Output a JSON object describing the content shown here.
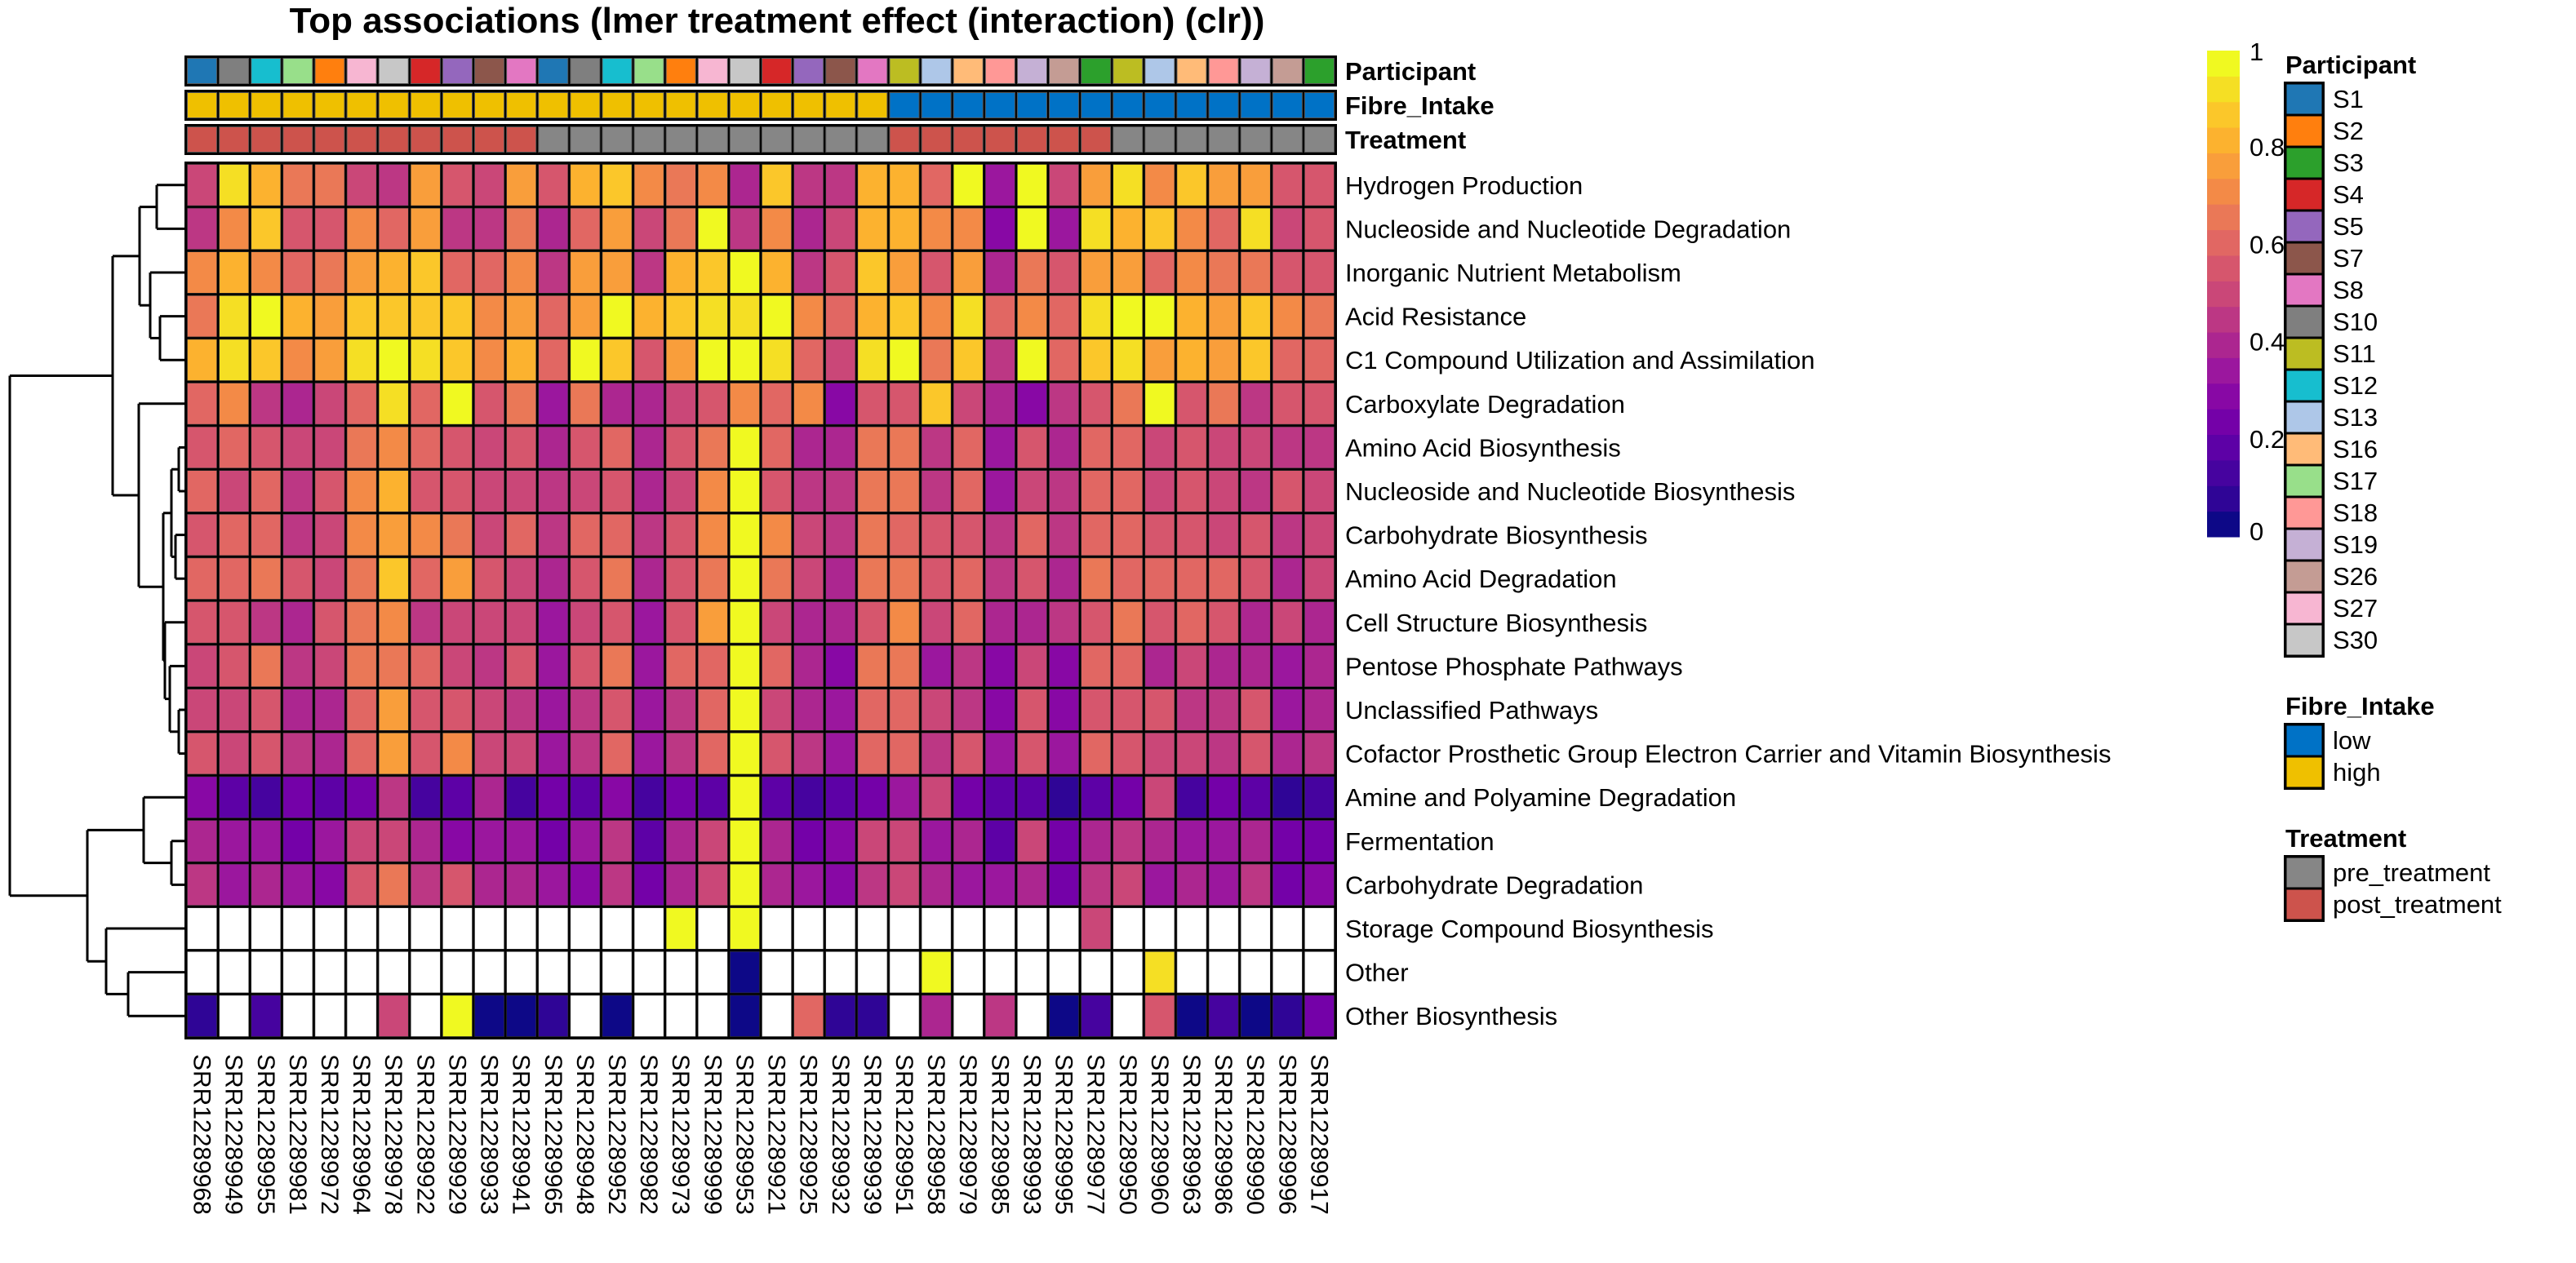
{
  "chart_data": {
    "type": "heatmap",
    "title": "Top associations (lmer treatment effect (interaction) (clr))",
    "xlabel": "",
    "ylabel": "",
    "color_scale": {
      "name": "plasma (binned)",
      "range": [
        0,
        1
      ],
      "ticks": [
        "0",
        "0.2",
        "0.4",
        "0.6",
        "0.8",
        "1"
      ],
      "tick_values": [
        0,
        0.2,
        0.4,
        0.6,
        0.8,
        1
      ],
      "bins": 19,
      "colors": [
        "#0D0887",
        "#2F0596",
        "#46039F",
        "#5D01A6",
        "#7401A8",
        "#8808A5",
        "#9B179E",
        "#AC2690",
        "#BC3784",
        "#CA4778",
        "#D6566D",
        "#E16763",
        "#EA7857",
        "#F38A47",
        "#F99E3B",
        "#FCB22F",
        "#FBC72A",
        "#F5DF24",
        "#F0F921"
      ],
      "missing_color": "#FFFFFF"
    },
    "columns": [
      "SRR12289968",
      "SRR12289949",
      "SRR12289955",
      "SRR12289981",
      "SRR12289972",
      "SRR12289964",
      "SRR12289978",
      "SRR12289922",
      "SRR12289929",
      "SRR12289933",
      "SRR12289941",
      "SRR12289965",
      "SRR12289948",
      "SRR12289952",
      "SRR12289982",
      "SRR12289973",
      "SRR12289999",
      "SRR12289953",
      "SRR12289921",
      "SRR12289925",
      "SRR12289932",
      "SRR12289939",
      "SRR12289951",
      "SRR12289958",
      "SRR12289979",
      "SRR12289985",
      "SRR12289993",
      "SRR12289995",
      "SRR12289977",
      "SRR12289950",
      "SRR12289960",
      "SRR12289963",
      "SRR12289986",
      "SRR12289990",
      "SRR12289996",
      "SRR12289917"
    ],
    "rows": [
      "Hydrogen Production",
      "Nucleoside and Nucleotide Degradation",
      "Inorganic Nutrient Metabolism",
      "Acid Resistance",
      "C1 Compound Utilization and Assimilation",
      "Carboxylate Degradation",
      "Amino Acid Biosynthesis",
      "Nucleoside and Nucleotide Biosynthesis",
      "Carbohydrate Biosynthesis",
      "Amino Acid Degradation",
      "Cell Structure Biosynthesis",
      "Pentose Phosphate Pathways",
      "Unclassified Pathways",
      "Cofactor Prosthetic Group Electron Carrier and Vitamin Biosynthesis",
      "Amine and Polyamine Degradation",
      "Fermentation",
      "Carbohydrate Degradation",
      "Storage Compound Biosynthesis",
      "Other",
      "Other Biosynthesis"
    ],
    "values": [
      [
        0.5,
        0.9,
        0.8,
        0.65,
        0.65,
        0.5,
        0.45,
        0.75,
        0.55,
        0.5,
        0.75,
        0.55,
        0.8,
        0.85,
        0.7,
        0.65,
        0.7,
        0.4,
        0.85,
        0.45,
        0.45,
        0.8,
        0.8,
        0.6,
        1.0,
        0.35,
        1.0,
        0.5,
        0.75,
        0.9,
        0.7,
        0.85,
        0.75,
        0.75,
        0.55,
        0.55
      ],
      [
        0.45,
        0.7,
        0.85,
        0.55,
        0.55,
        0.7,
        0.6,
        0.75,
        0.45,
        0.45,
        0.65,
        0.4,
        0.6,
        0.75,
        0.5,
        0.65,
        1.0,
        0.45,
        0.7,
        0.4,
        0.5,
        0.8,
        0.8,
        0.7,
        0.7,
        0.3,
        1.0,
        0.35,
        0.9,
        0.8,
        0.85,
        0.7,
        0.6,
        0.9,
        0.5,
        0.55
      ],
      [
        0.7,
        0.8,
        0.7,
        0.6,
        0.65,
        0.75,
        0.8,
        0.85,
        0.6,
        0.6,
        0.7,
        0.45,
        0.75,
        0.75,
        0.45,
        0.8,
        0.85,
        1.0,
        0.8,
        0.45,
        0.55,
        0.85,
        0.75,
        0.55,
        0.75,
        0.4,
        0.65,
        0.55,
        0.75,
        0.75,
        0.6,
        0.7,
        0.65,
        0.65,
        0.55,
        0.55
      ],
      [
        0.65,
        0.9,
        1.0,
        0.8,
        0.75,
        0.85,
        0.85,
        0.85,
        0.85,
        0.7,
        0.75,
        0.6,
        0.75,
        1.0,
        0.8,
        0.85,
        0.9,
        0.9,
        1.0,
        0.7,
        0.6,
        0.8,
        0.85,
        0.7,
        0.9,
        0.6,
        0.7,
        0.6,
        0.9,
        1.0,
        1.0,
        0.8,
        0.75,
        0.85,
        0.7,
        0.65
      ],
      [
        0.8,
        0.9,
        0.85,
        0.7,
        0.75,
        0.9,
        1.0,
        0.9,
        0.85,
        0.7,
        0.8,
        0.6,
        1.0,
        0.85,
        0.55,
        0.75,
        1.0,
        1.0,
        0.9,
        0.6,
        0.5,
        0.9,
        1.0,
        0.65,
        0.85,
        0.45,
        1.0,
        0.6,
        0.85,
        0.9,
        0.75,
        0.8,
        0.75,
        0.85,
        0.6,
        0.6
      ],
      [
        0.6,
        0.7,
        0.45,
        0.4,
        0.5,
        0.6,
        0.9,
        0.6,
        1.0,
        0.55,
        0.65,
        0.35,
        0.65,
        0.4,
        0.4,
        0.5,
        0.55,
        0.7,
        0.6,
        0.7,
        0.3,
        0.55,
        0.55,
        0.85,
        0.5,
        0.4,
        0.3,
        0.45,
        0.55,
        0.65,
        1.0,
        0.55,
        0.65,
        0.45,
        0.55,
        0.55
      ],
      [
        0.55,
        0.6,
        0.55,
        0.5,
        0.5,
        0.65,
        0.7,
        0.6,
        0.55,
        0.5,
        0.55,
        0.4,
        0.55,
        0.6,
        0.4,
        0.55,
        0.65,
        1.0,
        0.6,
        0.4,
        0.4,
        0.65,
        0.65,
        0.45,
        0.6,
        0.35,
        0.55,
        0.4,
        0.6,
        0.6,
        0.5,
        0.55,
        0.5,
        0.5,
        0.45,
        0.45
      ],
      [
        0.6,
        0.5,
        0.6,
        0.45,
        0.55,
        0.7,
        0.8,
        0.55,
        0.55,
        0.5,
        0.5,
        0.45,
        0.5,
        0.55,
        0.4,
        0.5,
        0.7,
        1.0,
        0.55,
        0.45,
        0.45,
        0.65,
        0.65,
        0.45,
        0.6,
        0.35,
        0.5,
        0.45,
        0.6,
        0.6,
        0.5,
        0.55,
        0.5,
        0.45,
        0.55,
        0.5
      ],
      [
        0.55,
        0.6,
        0.6,
        0.45,
        0.5,
        0.7,
        0.75,
        0.7,
        0.65,
        0.5,
        0.6,
        0.45,
        0.6,
        0.6,
        0.45,
        0.55,
        0.7,
        1.0,
        0.7,
        0.5,
        0.45,
        0.65,
        0.6,
        0.55,
        0.55,
        0.45,
        0.6,
        0.45,
        0.6,
        0.6,
        0.55,
        0.55,
        0.5,
        0.55,
        0.45,
        0.5
      ],
      [
        0.6,
        0.6,
        0.65,
        0.55,
        0.5,
        0.65,
        0.85,
        0.6,
        0.75,
        0.55,
        0.5,
        0.4,
        0.55,
        0.65,
        0.4,
        0.55,
        0.65,
        1.0,
        0.65,
        0.5,
        0.4,
        0.65,
        0.65,
        0.55,
        0.6,
        0.45,
        0.55,
        0.4,
        0.65,
        0.6,
        0.6,
        0.6,
        0.6,
        0.55,
        0.4,
        0.5
      ],
      [
        0.55,
        0.55,
        0.45,
        0.4,
        0.55,
        0.65,
        0.7,
        0.45,
        0.5,
        0.5,
        0.5,
        0.35,
        0.5,
        0.55,
        0.35,
        0.55,
        0.75,
        1.0,
        0.5,
        0.4,
        0.4,
        0.55,
        0.7,
        0.5,
        0.6,
        0.4,
        0.4,
        0.45,
        0.55,
        0.65,
        0.55,
        0.6,
        0.55,
        0.4,
        0.5,
        0.4
      ],
      [
        0.5,
        0.55,
        0.65,
        0.45,
        0.5,
        0.65,
        0.65,
        0.6,
        0.5,
        0.45,
        0.55,
        0.35,
        0.55,
        0.65,
        0.35,
        0.6,
        0.6,
        1.0,
        0.6,
        0.4,
        0.3,
        0.65,
        0.65,
        0.35,
        0.45,
        0.3,
        0.5,
        0.3,
        0.6,
        0.6,
        0.4,
        0.5,
        0.4,
        0.4,
        0.35,
        0.4
      ],
      [
        0.5,
        0.5,
        0.55,
        0.4,
        0.4,
        0.6,
        0.75,
        0.55,
        0.55,
        0.5,
        0.45,
        0.35,
        0.45,
        0.55,
        0.35,
        0.45,
        0.6,
        1.0,
        0.5,
        0.4,
        0.35,
        0.6,
        0.6,
        0.5,
        0.45,
        0.3,
        0.55,
        0.3,
        0.55,
        0.55,
        0.55,
        0.45,
        0.45,
        0.55,
        0.35,
        0.4
      ],
      [
        0.55,
        0.5,
        0.55,
        0.45,
        0.4,
        0.6,
        0.75,
        0.55,
        0.7,
        0.5,
        0.5,
        0.35,
        0.45,
        0.6,
        0.35,
        0.45,
        0.6,
        1.0,
        0.55,
        0.45,
        0.35,
        0.6,
        0.6,
        0.45,
        0.55,
        0.35,
        0.55,
        0.35,
        0.6,
        0.55,
        0.5,
        0.5,
        0.45,
        0.55,
        0.4,
        0.45
      ],
      [
        0.3,
        0.2,
        0.15,
        0.25,
        0.2,
        0.25,
        0.45,
        0.15,
        0.2,
        0.4,
        0.15,
        0.25,
        0.2,
        0.3,
        0.15,
        0.25,
        0.2,
        1.0,
        0.2,
        0.15,
        0.2,
        0.25,
        0.35,
        0.5,
        0.25,
        0.2,
        0.2,
        0.1,
        0.2,
        0.25,
        0.5,
        0.15,
        0.25,
        0.2,
        0.1,
        0.15
      ],
      [
        0.4,
        0.35,
        0.35,
        0.25,
        0.35,
        0.5,
        0.5,
        0.4,
        0.3,
        0.35,
        0.35,
        0.25,
        0.35,
        0.45,
        0.2,
        0.4,
        0.5,
        1.0,
        0.4,
        0.25,
        0.3,
        0.5,
        0.5,
        0.35,
        0.4,
        0.2,
        0.5,
        0.25,
        0.4,
        0.45,
        0.4,
        0.35,
        0.35,
        0.4,
        0.25,
        0.25
      ],
      [
        0.45,
        0.35,
        0.4,
        0.35,
        0.3,
        0.55,
        0.65,
        0.45,
        0.55,
        0.4,
        0.4,
        0.35,
        0.3,
        0.45,
        0.25,
        0.4,
        0.5,
        1.0,
        0.4,
        0.35,
        0.3,
        0.45,
        0.5,
        0.4,
        0.35,
        0.35,
        0.4,
        0.25,
        0.45,
        0.5,
        0.35,
        0.4,
        0.35,
        0.45,
        0.25,
        0.3
      ],
      [
        null,
        null,
        null,
        null,
        null,
        null,
        null,
        null,
        null,
        null,
        null,
        null,
        null,
        null,
        null,
        1.0,
        null,
        1.0,
        null,
        null,
        null,
        null,
        null,
        null,
        null,
        null,
        null,
        null,
        0.5,
        null,
        null,
        null,
        null,
        null,
        null,
        null
      ],
      [
        null,
        null,
        null,
        null,
        null,
        null,
        null,
        null,
        null,
        null,
        null,
        null,
        null,
        null,
        null,
        null,
        null,
        0.02,
        null,
        null,
        null,
        null,
        null,
        1.0,
        null,
        null,
        null,
        null,
        null,
        null,
        0.9,
        null,
        null,
        null,
        null,
        null
      ],
      [
        0.1,
        null,
        0.15,
        null,
        null,
        null,
        0.5,
        null,
        1.0,
        0.05,
        0.05,
        0.1,
        null,
        0.05,
        null,
        null,
        null,
        0.05,
        null,
        0.6,
        0.1,
        0.1,
        null,
        0.4,
        null,
        0.45,
        null,
        0.05,
        0.15,
        null,
        0.55,
        0.05,
        0.15,
        0.05,
        0.1,
        0.25
      ]
    ],
    "annotations": {
      "Participant": [
        "S1",
        "S10",
        "S12",
        "S17",
        "S2",
        "S27",
        "S30",
        "S4",
        "S5",
        "S7",
        "S8",
        "S1",
        "S10",
        "S12",
        "S17",
        "S2",
        "S27",
        "S30",
        "S4",
        "S5",
        "S7",
        "S8",
        "S11",
        "S13",
        "S16",
        "S18",
        "S19",
        "S26",
        "S3",
        "S11",
        "S13",
        "S16",
        "S18",
        "S19",
        "S26",
        "S3"
      ],
      "Fibre_Intake": [
        "high",
        "high",
        "high",
        "high",
        "high",
        "high",
        "high",
        "high",
        "high",
        "high",
        "high",
        "high",
        "high",
        "high",
        "high",
        "high",
        "high",
        "high",
        "high",
        "high",
        "high",
        "high",
        "low",
        "low",
        "low",
        "low",
        "low",
        "low",
        "low",
        "low",
        "low",
        "low",
        "low",
        "low",
        "low",
        "low"
      ],
      "Treatment": [
        "post_treatment",
        "post_treatment",
        "post_treatment",
        "post_treatment",
        "post_treatment",
        "post_treatment",
        "post_treatment",
        "post_treatment",
        "post_treatment",
        "post_treatment",
        "post_treatment",
        "pre_treatment",
        "pre_treatment",
        "pre_treatment",
        "pre_treatment",
        "pre_treatment",
        "pre_treatment",
        "pre_treatment",
        "pre_treatment",
        "pre_treatment",
        "pre_treatment",
        "pre_treatment",
        "post_treatment",
        "post_treatment",
        "post_treatment",
        "post_treatment",
        "post_treatment",
        "post_treatment",
        "post_treatment",
        "pre_treatment",
        "pre_treatment",
        "pre_treatment",
        "pre_treatment",
        "pre_treatment",
        "pre_treatment",
        "pre_treatment"
      ]
    },
    "annotation_labels": [
      "Participant",
      "Fibre_Intake",
      "Treatment"
    ],
    "legends": [
      {
        "title": "Participant",
        "entries": [
          {
            "label": "S1",
            "color": "#1F77B4"
          },
          {
            "label": "S2",
            "color": "#FF7F0E"
          },
          {
            "label": "S3",
            "color": "#2CA02C"
          },
          {
            "label": "S4",
            "color": "#D62728"
          },
          {
            "label": "S5",
            "color": "#9467BD"
          },
          {
            "label": "S7",
            "color": "#8C564B"
          },
          {
            "label": "S8",
            "color": "#E377C2"
          },
          {
            "label": "S10",
            "color": "#7F7F7F"
          },
          {
            "label": "S11",
            "color": "#BCBD22"
          },
          {
            "label": "S12",
            "color": "#17BECF"
          },
          {
            "label": "S13",
            "color": "#AEC7E8"
          },
          {
            "label": "S16",
            "color": "#FFBB78"
          },
          {
            "label": "S17",
            "color": "#98DF8A"
          },
          {
            "label": "S18",
            "color": "#FF9896"
          },
          {
            "label": "S19",
            "color": "#C5B0D5"
          },
          {
            "label": "S26",
            "color": "#C49C94"
          },
          {
            "label": "S27",
            "color": "#F7B6D2"
          },
          {
            "label": "S30",
            "color": "#C7C7C7"
          }
        ]
      },
      {
        "title": "Fibre_Intake",
        "entries": [
          {
            "label": "low",
            "color": "#0072C6"
          },
          {
            "label": "high",
            "color": "#EFC000"
          }
        ]
      },
      {
        "title": "Treatment",
        "entries": [
          {
            "label": "pre_treatment",
            "color": "#868686"
          },
          {
            "label": "post_treatment",
            "color": "#CD534C"
          }
        ]
      }
    ],
    "row_dendrogram": true,
    "column_dendrogram": false,
    "legend_position": "right"
  }
}
